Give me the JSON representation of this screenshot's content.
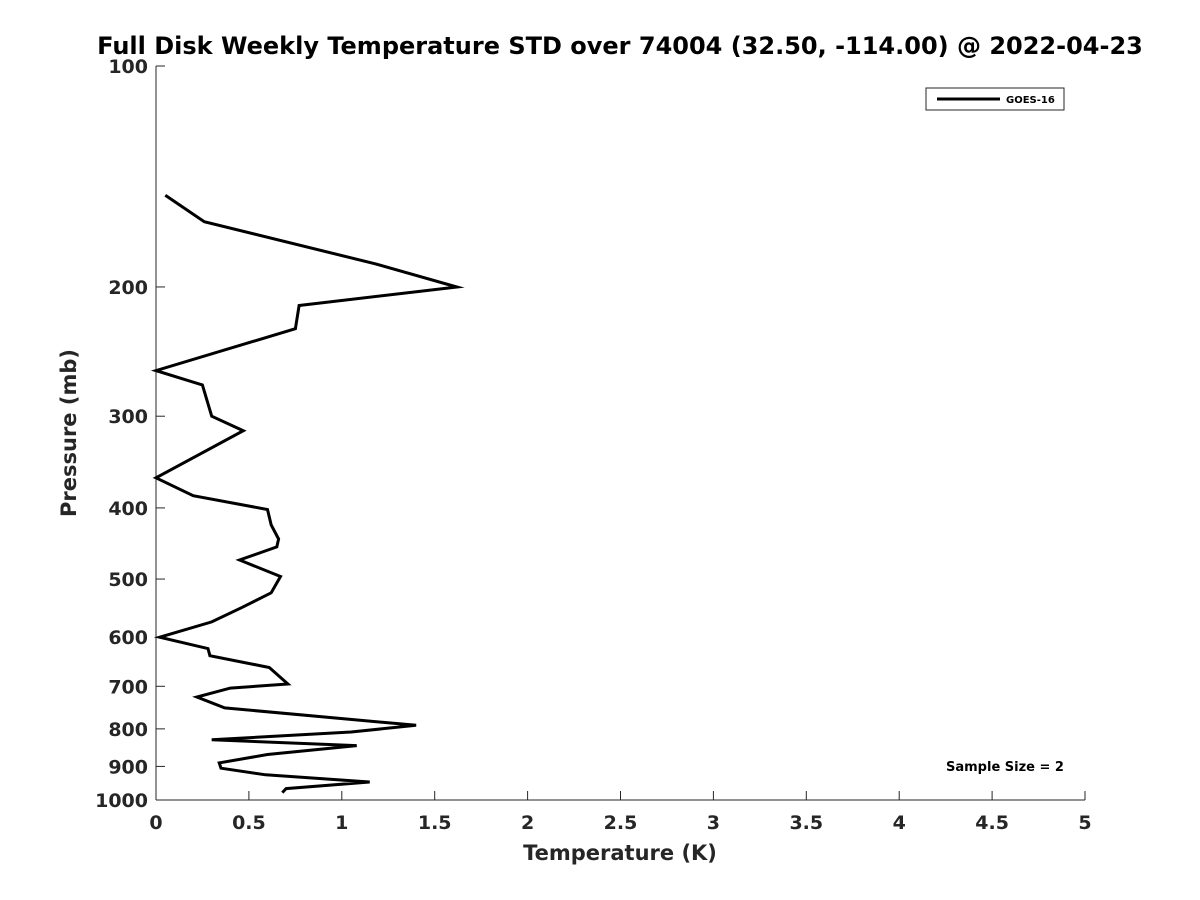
{
  "chart_data": {
    "type": "line",
    "title": "Full Disk Weekly Temperature STD over 74004 (32.50, -114.00) @ 2022-04-23",
    "xlabel": "Temperature (K)",
    "ylabel": "Pressure (mb)",
    "xlim": [
      0,
      5
    ],
    "ylim": [
      100,
      1000
    ],
    "y_scale": "log",
    "y_direction": "reversed",
    "x_ticks": [
      "0",
      "0.5",
      "1",
      "1.5",
      "2",
      "2.5",
      "3",
      "3.5",
      "4",
      "4.5",
      "5"
    ],
    "y_ticks": [
      "100",
      "200",
      "300",
      "400",
      "500",
      "600",
      "700",
      "800",
      "900",
      "1000"
    ],
    "grid": false,
    "legend": {
      "position": "top-right",
      "entries": [
        "GOES-16"
      ]
    },
    "annotation": "Sample Size = 2",
    "line_color": "#000000",
    "series": [
      {
        "name": "GOES-16",
        "x": [
          0.05,
          0.26,
          1.18,
          1.62,
          0.77,
          0.75,
          0.0,
          0.25,
          0.3,
          0.47,
          0.0,
          0.2,
          0.6,
          0.62,
          0.66,
          0.65,
          0.45,
          0.67,
          0.62,
          0.46,
          0.3,
          0.02,
          0.28,
          0.29,
          0.61,
          0.71,
          0.4,
          0.22,
          0.37,
          1.4,
          1.05,
          0.3,
          1.08,
          0.6,
          0.34,
          0.35,
          0.59,
          1.15,
          0.7,
          0.68
        ],
        "y": [
          150,
          163,
          186,
          200,
          212,
          228,
          260,
          272,
          300,
          314,
          364,
          385,
          402,
          422,
          441,
          452,
          471,
          496,
          522,
          547,
          572,
          600,
          622,
          636,
          660,
          695,
          704,
          724,
          749,
          791,
          808,
          828,
          843,
          867,
          890,
          905,
          924,
          945,
          965,
          977
        ]
      }
    ]
  }
}
